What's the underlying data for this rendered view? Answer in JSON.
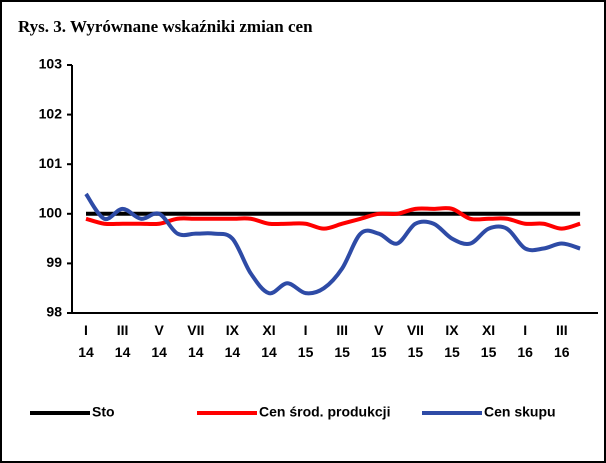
{
  "chart_data": {
    "type": "line",
    "title": "Rys. 3. Wyrównane wskaźniki zmian cen",
    "categories": [
      "I\n14",
      null,
      "III\n14",
      null,
      "V\n14",
      null,
      "VII\n14",
      null,
      "IX\n14",
      null,
      "XI\n14",
      null,
      "I\n15",
      null,
      "III\n15",
      null,
      "V\n15",
      null,
      "VII\n15",
      null,
      "IX\n15",
      null,
      "XI\n15",
      null,
      "I\n16",
      null,
      "III\n16",
      null
    ],
    "series": [
      {
        "name": "Sto",
        "color": "#000000",
        "values": [
          100,
          100,
          100,
          100,
          100,
          100,
          100,
          100,
          100,
          100,
          100,
          100,
          100,
          100,
          100,
          100,
          100,
          100,
          100,
          100,
          100,
          100,
          100,
          100,
          100,
          100,
          100,
          100
        ]
      },
      {
        "name": "Cen środ. produkcji",
        "color": "#ff0000",
        "values": [
          99.9,
          99.8,
          99.8,
          99.8,
          99.8,
          99.9,
          99.9,
          99.9,
          99.9,
          99.9,
          99.8,
          99.8,
          99.8,
          99.7,
          99.8,
          99.9,
          100.0,
          100.0,
          100.1,
          100.1,
          100.1,
          99.9,
          99.9,
          99.9,
          99.8,
          99.8,
          99.7,
          99.8
        ]
      },
      {
        "name": "Cen skupu",
        "color": "#2e4ba6",
        "values": [
          100.4,
          99.9,
          100.1,
          99.9,
          100.0,
          99.6,
          99.6,
          99.6,
          99.5,
          98.8,
          98.4,
          98.6,
          98.4,
          98.5,
          98.9,
          99.6,
          99.6,
          99.4,
          99.8,
          99.8,
          99.5,
          99.4,
          99.7,
          99.7,
          99.3,
          99.3,
          99.4,
          99.3
        ]
      }
    ],
    "ylim": [
      98,
      103
    ],
    "yticks": [
      98,
      99,
      100,
      101,
      102,
      103
    ],
    "legend": "bottom"
  }
}
